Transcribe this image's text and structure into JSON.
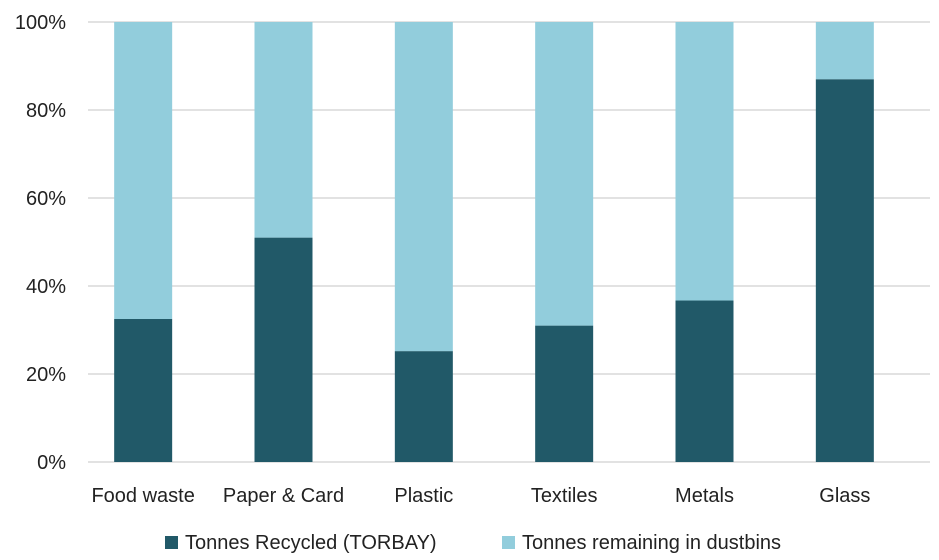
{
  "chart_data": {
    "type": "bar",
    "stacked": true,
    "percent_scale": true,
    "categories": [
      "Food waste",
      "Paper & Card",
      "Plastic",
      "Textiles",
      "Metals",
      "Glass"
    ],
    "series": [
      {
        "name": "Tonnes Recycled (TORBAY)",
        "color": "#215968",
        "values": [
          32.5,
          51,
          25.2,
          31,
          36.7,
          87
        ]
      },
      {
        "name": "Tonnes remaining in dustbins",
        "color": "#92CDDC",
        "values": [
          67.5,
          49,
          74.8,
          69,
          63.3,
          13
        ]
      }
    ],
    "ylim": [
      0,
      100
    ],
    "yticks": [
      "0%",
      "20%",
      "40%",
      "60%",
      "80%",
      "100%"
    ],
    "grid": true,
    "legend_position": "bottom",
    "title": "",
    "xlabel": "",
    "ylabel": ""
  }
}
